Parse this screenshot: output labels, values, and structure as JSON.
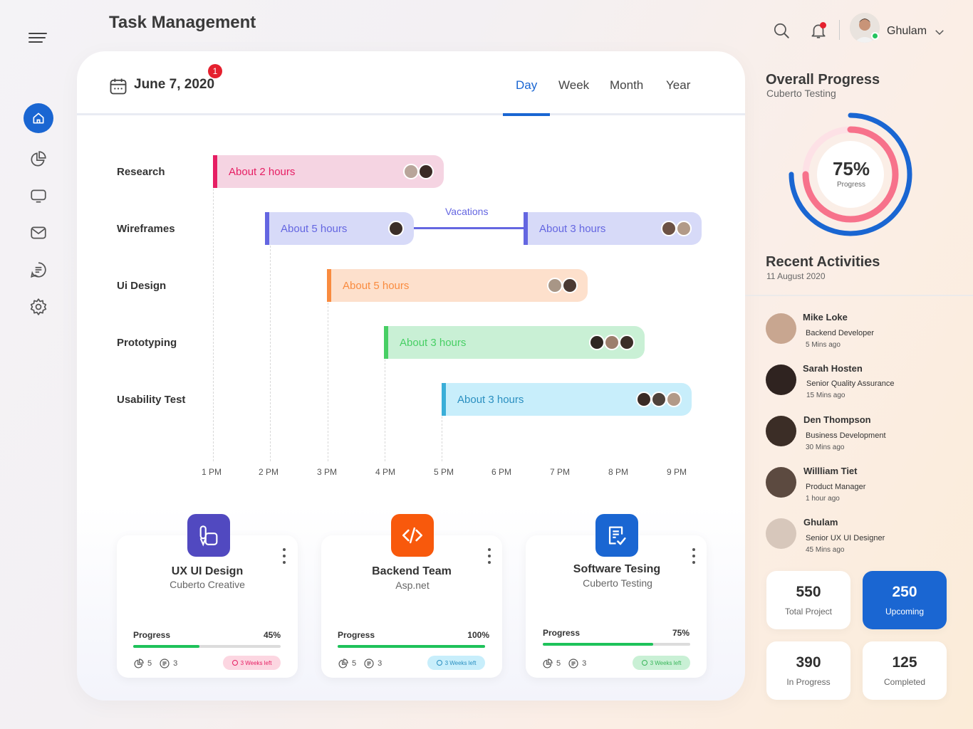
{
  "header": {
    "title": "Task Management",
    "user_name": "Ghulam"
  },
  "sidebar": {
    "items": [
      {
        "name": "home",
        "icon": "home-icon",
        "active": true
      },
      {
        "name": "analytics",
        "icon": "pie-chart-icon"
      },
      {
        "name": "monitor",
        "icon": "monitor-icon"
      },
      {
        "name": "mail",
        "icon": "mail-icon"
      },
      {
        "name": "notes",
        "icon": "notes-icon"
      },
      {
        "name": "settings",
        "icon": "gear-icon"
      }
    ]
  },
  "schedule": {
    "date": "June 7, 2020",
    "badge_count": "1",
    "tabs": [
      {
        "label": "Day",
        "active": true
      },
      {
        "label": "Week"
      },
      {
        "label": "Month"
      },
      {
        "label": "Year"
      }
    ],
    "rows": [
      {
        "label": "Research"
      },
      {
        "label": "Wireframes"
      },
      {
        "label": "Ui Design"
      },
      {
        "label": "Prototyping"
      },
      {
        "label": "Usability Test"
      }
    ],
    "bars": [
      {
        "text": "About 2 hours",
        "color": "#f5d4e2",
        "edge": "#e61e63",
        "text_color": "#e61e63"
      },
      {
        "text": "About 5 hours",
        "color": "#d7daf8",
        "edge": "#6466e1",
        "text_color": "#6466e1"
      },
      {
        "text": "About 3 hours",
        "color": "#d7daf8",
        "edge": "#6466e1",
        "text_color": "#6466e1"
      },
      {
        "text": "About 5 hours",
        "color": "#fde0cc",
        "edge": "#f98b3f",
        "text_color": "#f98b3f"
      },
      {
        "text": "About 3 hours",
        "color": "#c9f0d5",
        "edge": "#47cf64",
        "text_color": "#47cf64"
      },
      {
        "text": "About 3 hours",
        "color": "#c8eefb",
        "edge": "#3aaed8",
        "text_color": "#2a8fc0"
      }
    ],
    "vacations_label": "Vacations",
    "time_ticks": [
      "1 PM",
      "2 PM",
      "3 PM",
      "4 PM",
      "5 PM",
      "6 PM",
      "7 PM",
      "8 PM",
      "9 PM"
    ]
  },
  "projects": [
    {
      "title": "UX UI Design",
      "subtitle": "Cuberto Creative",
      "icon": "design-tools-icon",
      "icon_color": "#5149c0",
      "progress_label": "Progress",
      "progress": "45%",
      "progress_value": 0.45,
      "charts": "5",
      "tasks": "3",
      "deadline": "3 Weeks left",
      "pill_bg": "#fcd6e1",
      "pill_fg": "#e61e63"
    },
    {
      "title": "Backend Team",
      "subtitle": "Asp.net",
      "icon": "code-icon",
      "icon_color": "#f8590c",
      "progress_label": "Progress",
      "progress": "100%",
      "progress_value": 1.0,
      "charts": "5",
      "tasks": "3",
      "deadline": "3 Weeks left",
      "pill_bg": "#c8eefb",
      "pill_fg": "#2a8fc0"
    },
    {
      "title": "Software Tesing",
      "subtitle": "Cuberto Testing",
      "icon": "checklist-icon",
      "icon_color": "#1a66d2",
      "progress_label": "Progress",
      "progress": "75%",
      "progress_value": 0.75,
      "charts": "5",
      "tasks": "3",
      "deadline": "3 Weeks left",
      "pill_bg": "#c9f0d5",
      "pill_fg": "#39b65a"
    }
  ],
  "overall": {
    "title": "Overall Progress",
    "subtitle": "Cuberto Testing",
    "percent": "75%",
    "label": "Progress",
    "value": 0.75
  },
  "recent": {
    "title": "Recent Activities",
    "date": "11 August 2020",
    "items": [
      {
        "name": "Mike Loke",
        "role": "Backend Developer",
        "time": "5 Mins ago"
      },
      {
        "name": "Sarah Hosten",
        "role": "Senior Quality Assurance",
        "time": "15 Mins ago"
      },
      {
        "name": "Den Thompson",
        "role": "Business Development",
        "time": "30 Mins ago"
      },
      {
        "name": "Willliam Tiet",
        "role": "Product Manager",
        "time": "1 hour ago"
      },
      {
        "name": "Ghulam",
        "role": "Senior UX UI Designer",
        "time": "45 Mins ago"
      }
    ]
  },
  "stats": [
    {
      "value": "550",
      "label": "Total Project"
    },
    {
      "value": "250",
      "label": "Upcoming",
      "highlight": true
    },
    {
      "value": "390",
      "label": "In Progress"
    },
    {
      "value": "125",
      "label": "Completed"
    }
  ]
}
